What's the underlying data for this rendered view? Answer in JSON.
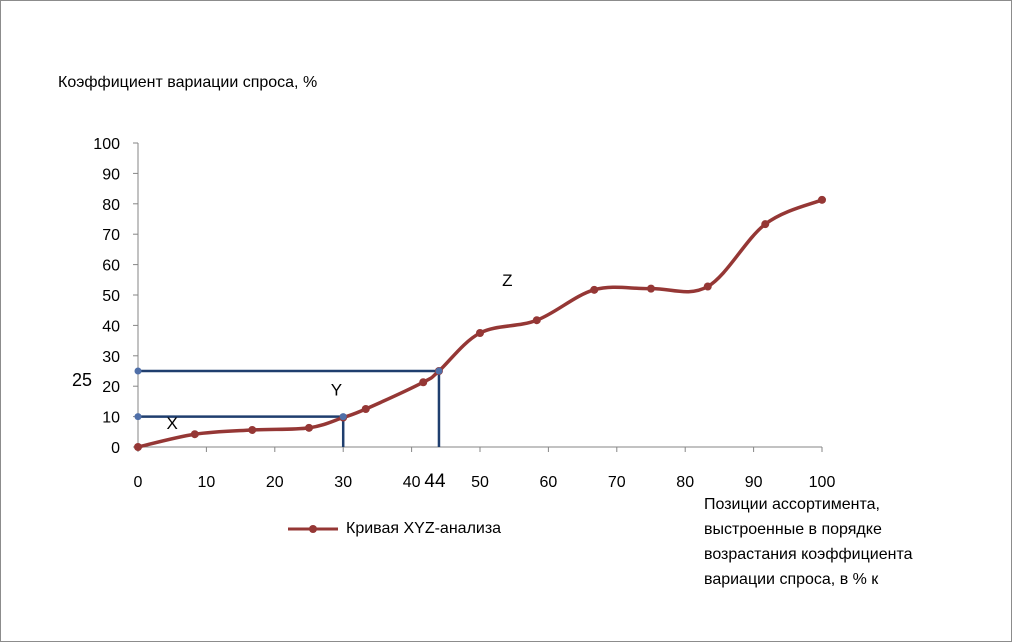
{
  "chart_data": {
    "type": "line",
    "ylabel": "Коэффициент вариации спроса, %",
    "xlabel": "Позиции ассортимента,\nвыстроенные в порядке\nвозрастания коэффициента\nвариации спроса, в % к",
    "xlim": [
      0,
      100
    ],
    "ylim": [
      0,
      100
    ],
    "x_ticks": [
      0,
      10,
      20,
      30,
      40,
      50,
      60,
      70,
      80,
      90,
      100
    ],
    "y_ticks": [
      0,
      10,
      20,
      30,
      40,
      50,
      60,
      70,
      80,
      90,
      100
    ],
    "grid": false,
    "legend": "bottom",
    "series": [
      {
        "name": "Кривая XYZ-анализа",
        "color": "#953735",
        "x": [
          0,
          8.3,
          16.7,
          25,
          30,
          33.3,
          41.7,
          44,
          50,
          58.3,
          66.7,
          75,
          83.3,
          91.7,
          100
        ],
        "y": [
          0,
          4.2,
          5.6,
          6.3,
          9.7,
          12.5,
          21.3,
          25,
          37.5,
          41.7,
          51.7,
          52.1,
          52.8,
          73.3,
          81.3
        ]
      }
    ],
    "guides": {
      "color": "#1f3e6e",
      "lines": [
        {
          "y": 10,
          "x_end": 30
        },
        {
          "y": 25,
          "x_end": 44
        }
      ]
    },
    "annotations": [
      {
        "text": "X",
        "x": 5,
        "y": 6
      },
      {
        "text": "Y",
        "x": 29,
        "y": 17
      },
      {
        "text": "Z",
        "x": 54,
        "y": 53
      },
      {
        "text": "25",
        "axis": "y",
        "value": 25
      },
      {
        "text": "44",
        "axis": "x",
        "value": 44
      }
    ]
  }
}
